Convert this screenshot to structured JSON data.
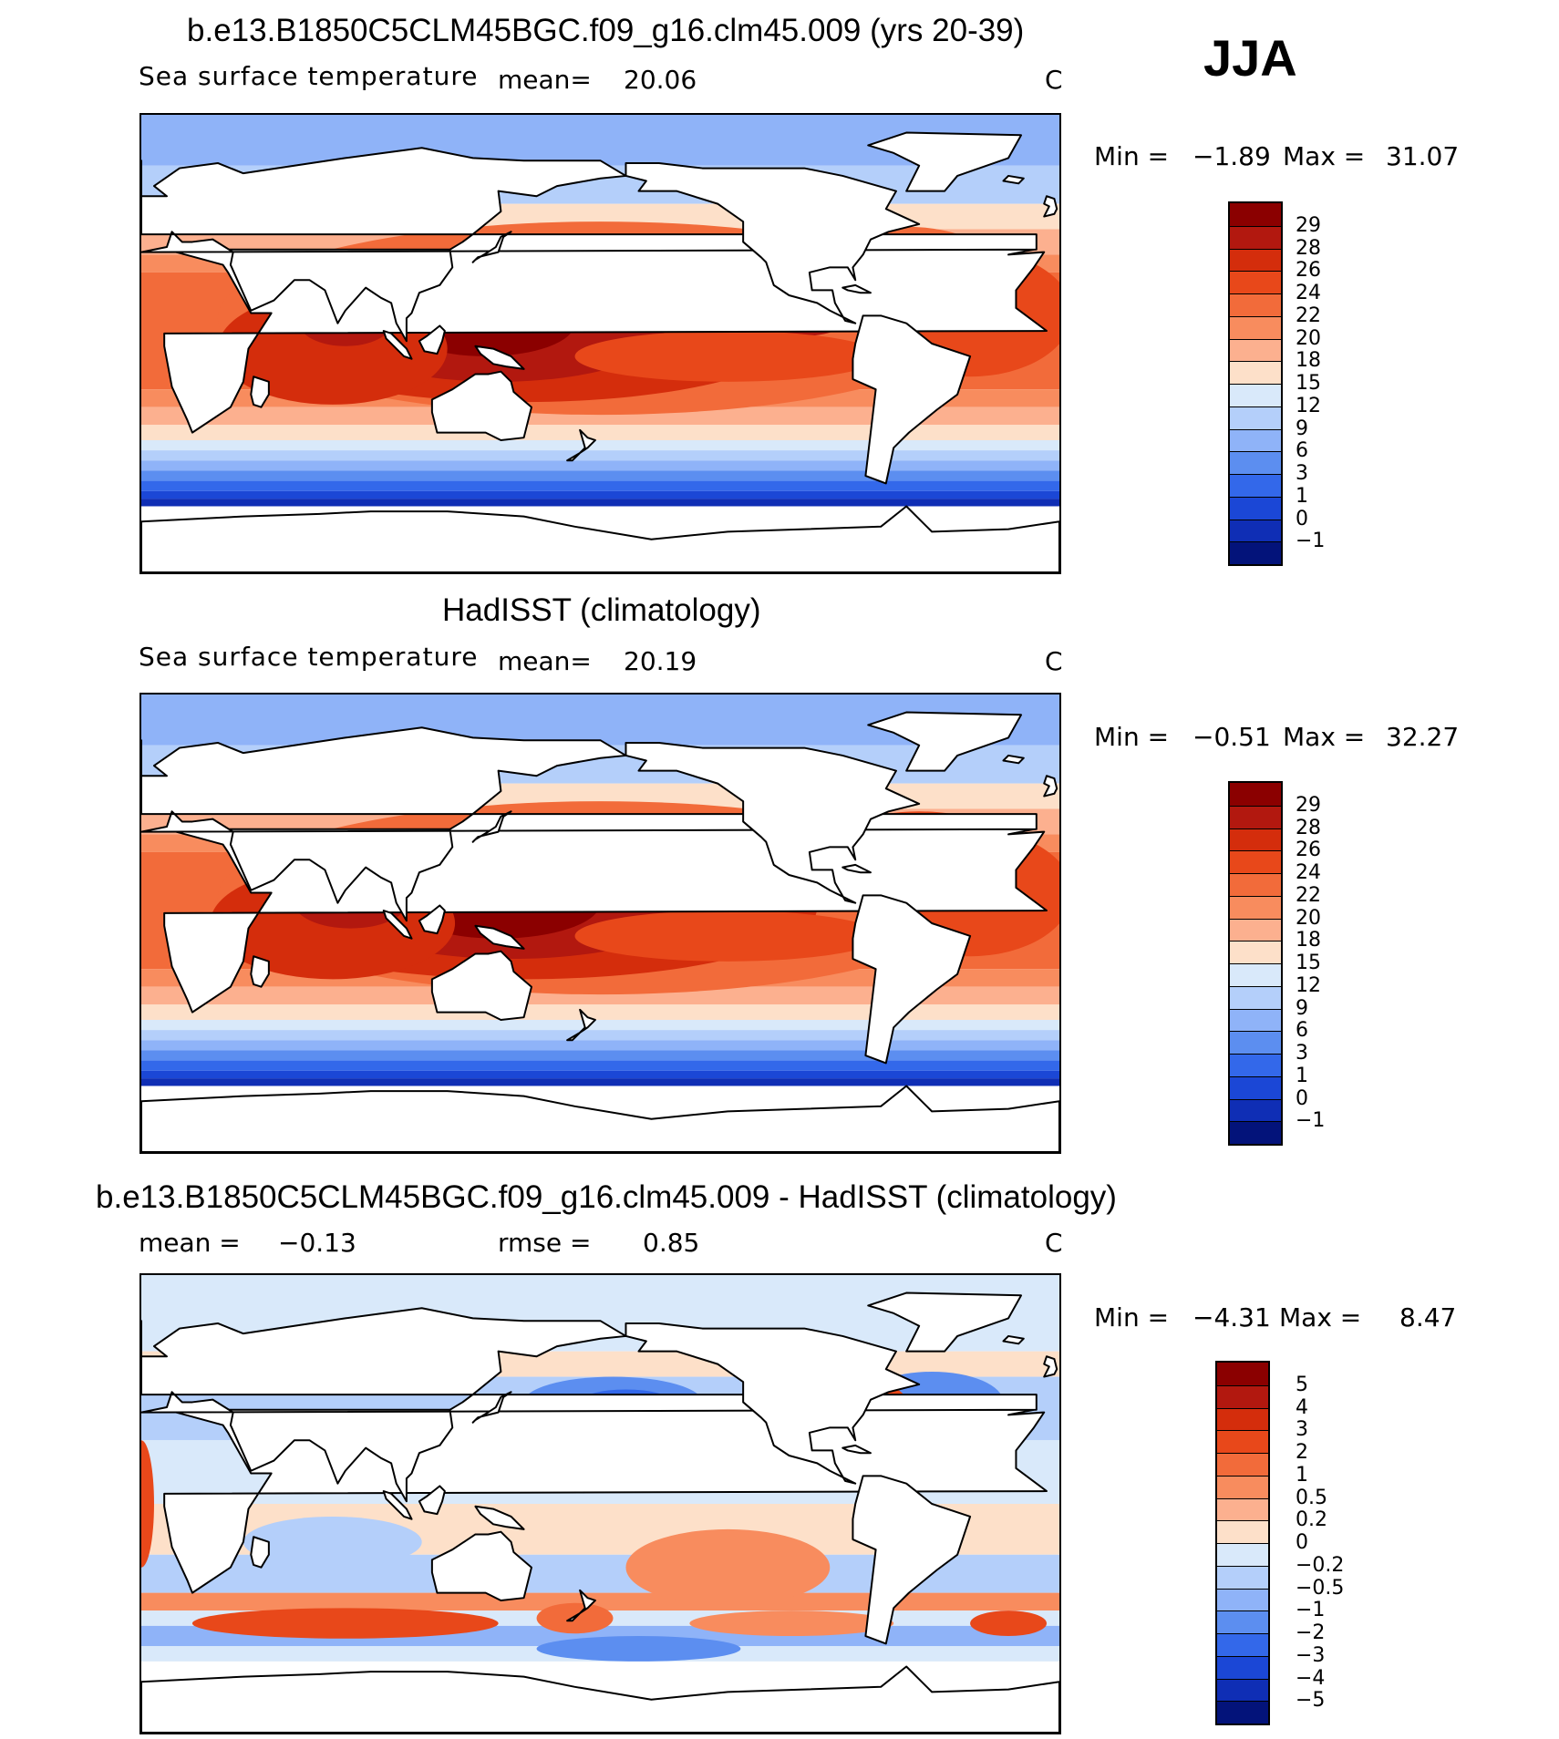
{
  "season": "JJA",
  "chart_data": [
    {
      "type": "heatmap",
      "title": "b.e13.B1850C5CLM45BGC.f09_g16.clm45.009 (yrs 20-39)",
      "subtitle": "Sea surface temperature",
      "mean_label": "mean=",
      "mean": "20.06",
      "units": "C",
      "min_label": "Min =",
      "min": "−1.89",
      "max_label": "Max =",
      "max": "31.07",
      "colorbar": {
        "ticks": [
          "29",
          "28",
          "26",
          "24",
          "22",
          "20",
          "18",
          "15",
          "12",
          "9",
          "6",
          "3",
          "1",
          "0",
          "−1"
        ],
        "colors": [
          "#8b0000",
          "#b2180f",
          "#d42d0c",
          "#e8481a",
          "#f26b3a",
          "#f88c5e",
          "#fcb08f",
          "#fde0c9",
          "#d9e9fa",
          "#b4cffa",
          "#8fb3f8",
          "#5c8ef0",
          "#3368ea",
          "#1b47d6",
          "#0f2eb5",
          "#03137a"
        ]
      }
    },
    {
      "type": "heatmap",
      "title": "HadISST (climatology)",
      "subtitle": "Sea surface temperature",
      "mean_label": "mean=",
      "mean": "20.19",
      "units": "C",
      "min_label": "Min =",
      "min": "−0.51",
      "max_label": "Max =",
      "max": "32.27",
      "colorbar": {
        "ticks": [
          "29",
          "28",
          "26",
          "24",
          "22",
          "20",
          "18",
          "15",
          "12",
          "9",
          "6",
          "3",
          "1",
          "0",
          "−1"
        ],
        "colors": [
          "#8b0000",
          "#b2180f",
          "#d42d0c",
          "#e8481a",
          "#f26b3a",
          "#f88c5e",
          "#fcb08f",
          "#fde0c9",
          "#d9e9fa",
          "#b4cffa",
          "#8fb3f8",
          "#5c8ef0",
          "#3368ea",
          "#1b47d6",
          "#0f2eb5",
          "#03137a"
        ]
      }
    },
    {
      "type": "heatmap",
      "title": "b.e13.B1850C5CLM45BGC.f09_g16.clm45.009 - HadISST (climatology)",
      "mean_label": "mean =",
      "mean": "−0.13",
      "rmse_label": "rmse =",
      "rmse": "0.85",
      "units": "C",
      "min_label": "Min =",
      "min": "−4.31",
      "max_label": "Max =",
      "max": "8.47",
      "colorbar": {
        "ticks": [
          "5",
          "4",
          "3",
          "2",
          "1",
          "0.5",
          "0.2",
          "0",
          "−0.2",
          "−0.5",
          "−1",
          "−2",
          "−3",
          "−4",
          "−5"
        ],
        "colors": [
          "#8b0000",
          "#b2180f",
          "#d42d0c",
          "#e8481a",
          "#f26b3a",
          "#f88c5e",
          "#fcb08f",
          "#fde0c9",
          "#d9e9fa",
          "#b4cffa",
          "#8fb3f8",
          "#5c8ef0",
          "#3368ea",
          "#1b47d6",
          "#0f2eb5",
          "#03137a"
        ]
      }
    }
  ]
}
